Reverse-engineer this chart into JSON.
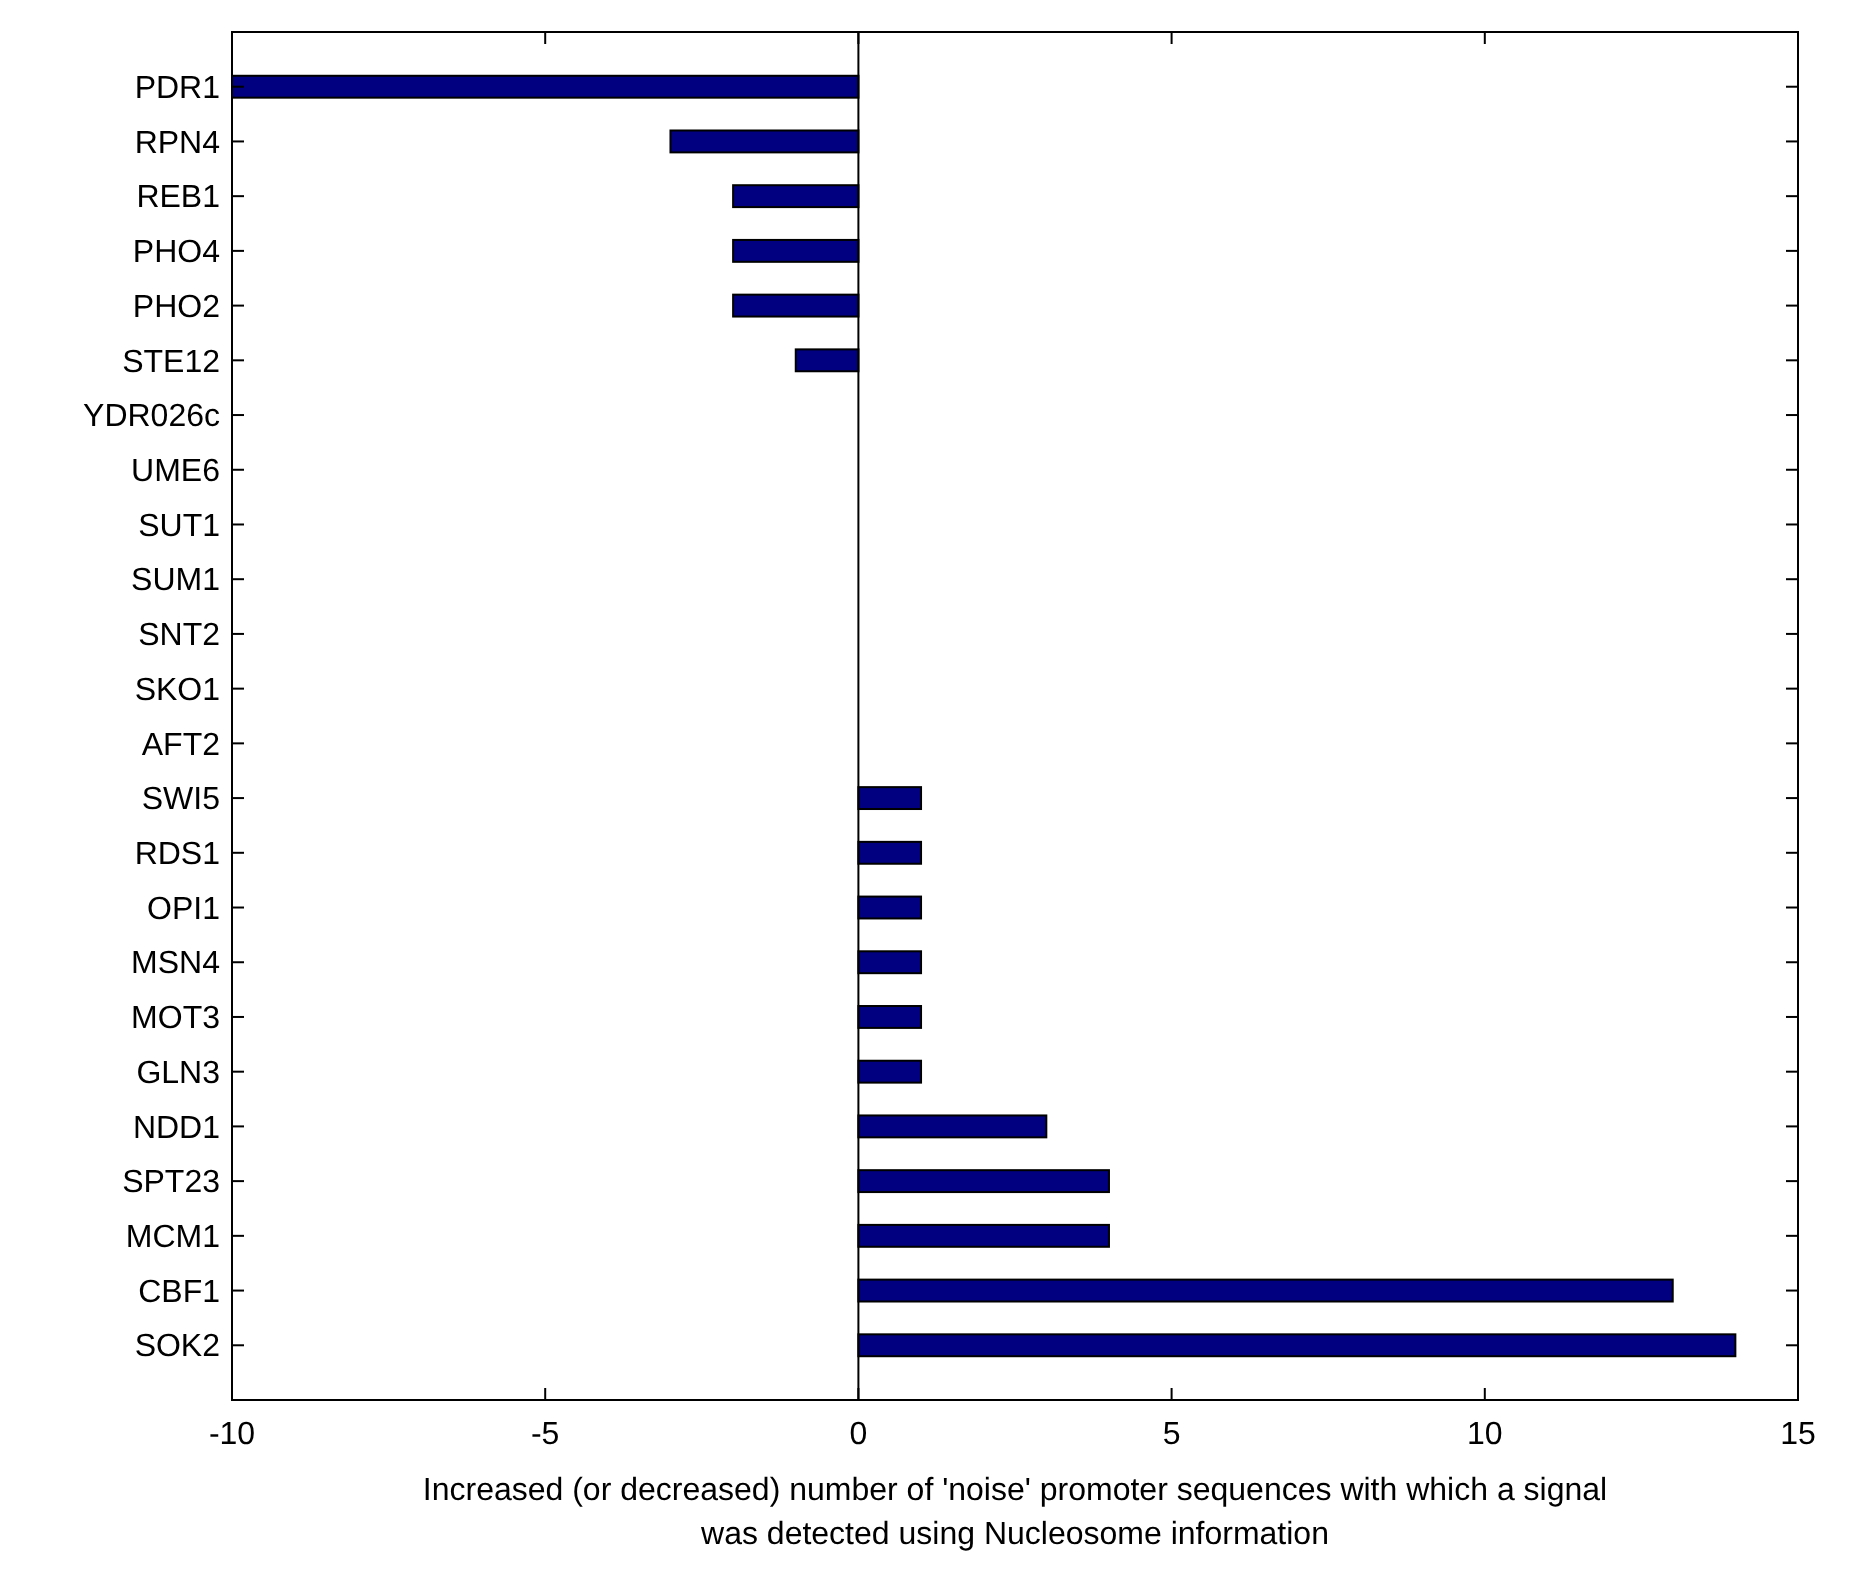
{
  "chart_data": {
    "type": "bar",
    "orientation": "horizontal",
    "xlabel": "Increased (or decreased) number of 'noise' promoter sequences with which a signal was detected using Nucleosome information",
    "categories": [
      "PDR1",
      "RPN4",
      "REB1",
      "PHO4",
      "PHO2",
      "STE12",
      "YDR026c",
      "UME6",
      "SUT1",
      "SUM1",
      "SNT2",
      "SKO1",
      "AFT2",
      "SWI5",
      "RDS1",
      "OPI1",
      "MSN4",
      "MOT3",
      "GLN3",
      "NDD1",
      "SPT23",
      "MCM1",
      "CBF1",
      "SOK2"
    ],
    "values": [
      -10,
      -3,
      -2,
      -2,
      -2,
      -1,
      0,
      0,
      0,
      0,
      0,
      0,
      0,
      1,
      1,
      1,
      1,
      1,
      1,
      3,
      4,
      4,
      13,
      14
    ],
    "color": "#000080",
    "xlim": [
      -10,
      15
    ],
    "xticks": [
      -10,
      -5,
      0,
      5,
      10,
      15
    ]
  }
}
